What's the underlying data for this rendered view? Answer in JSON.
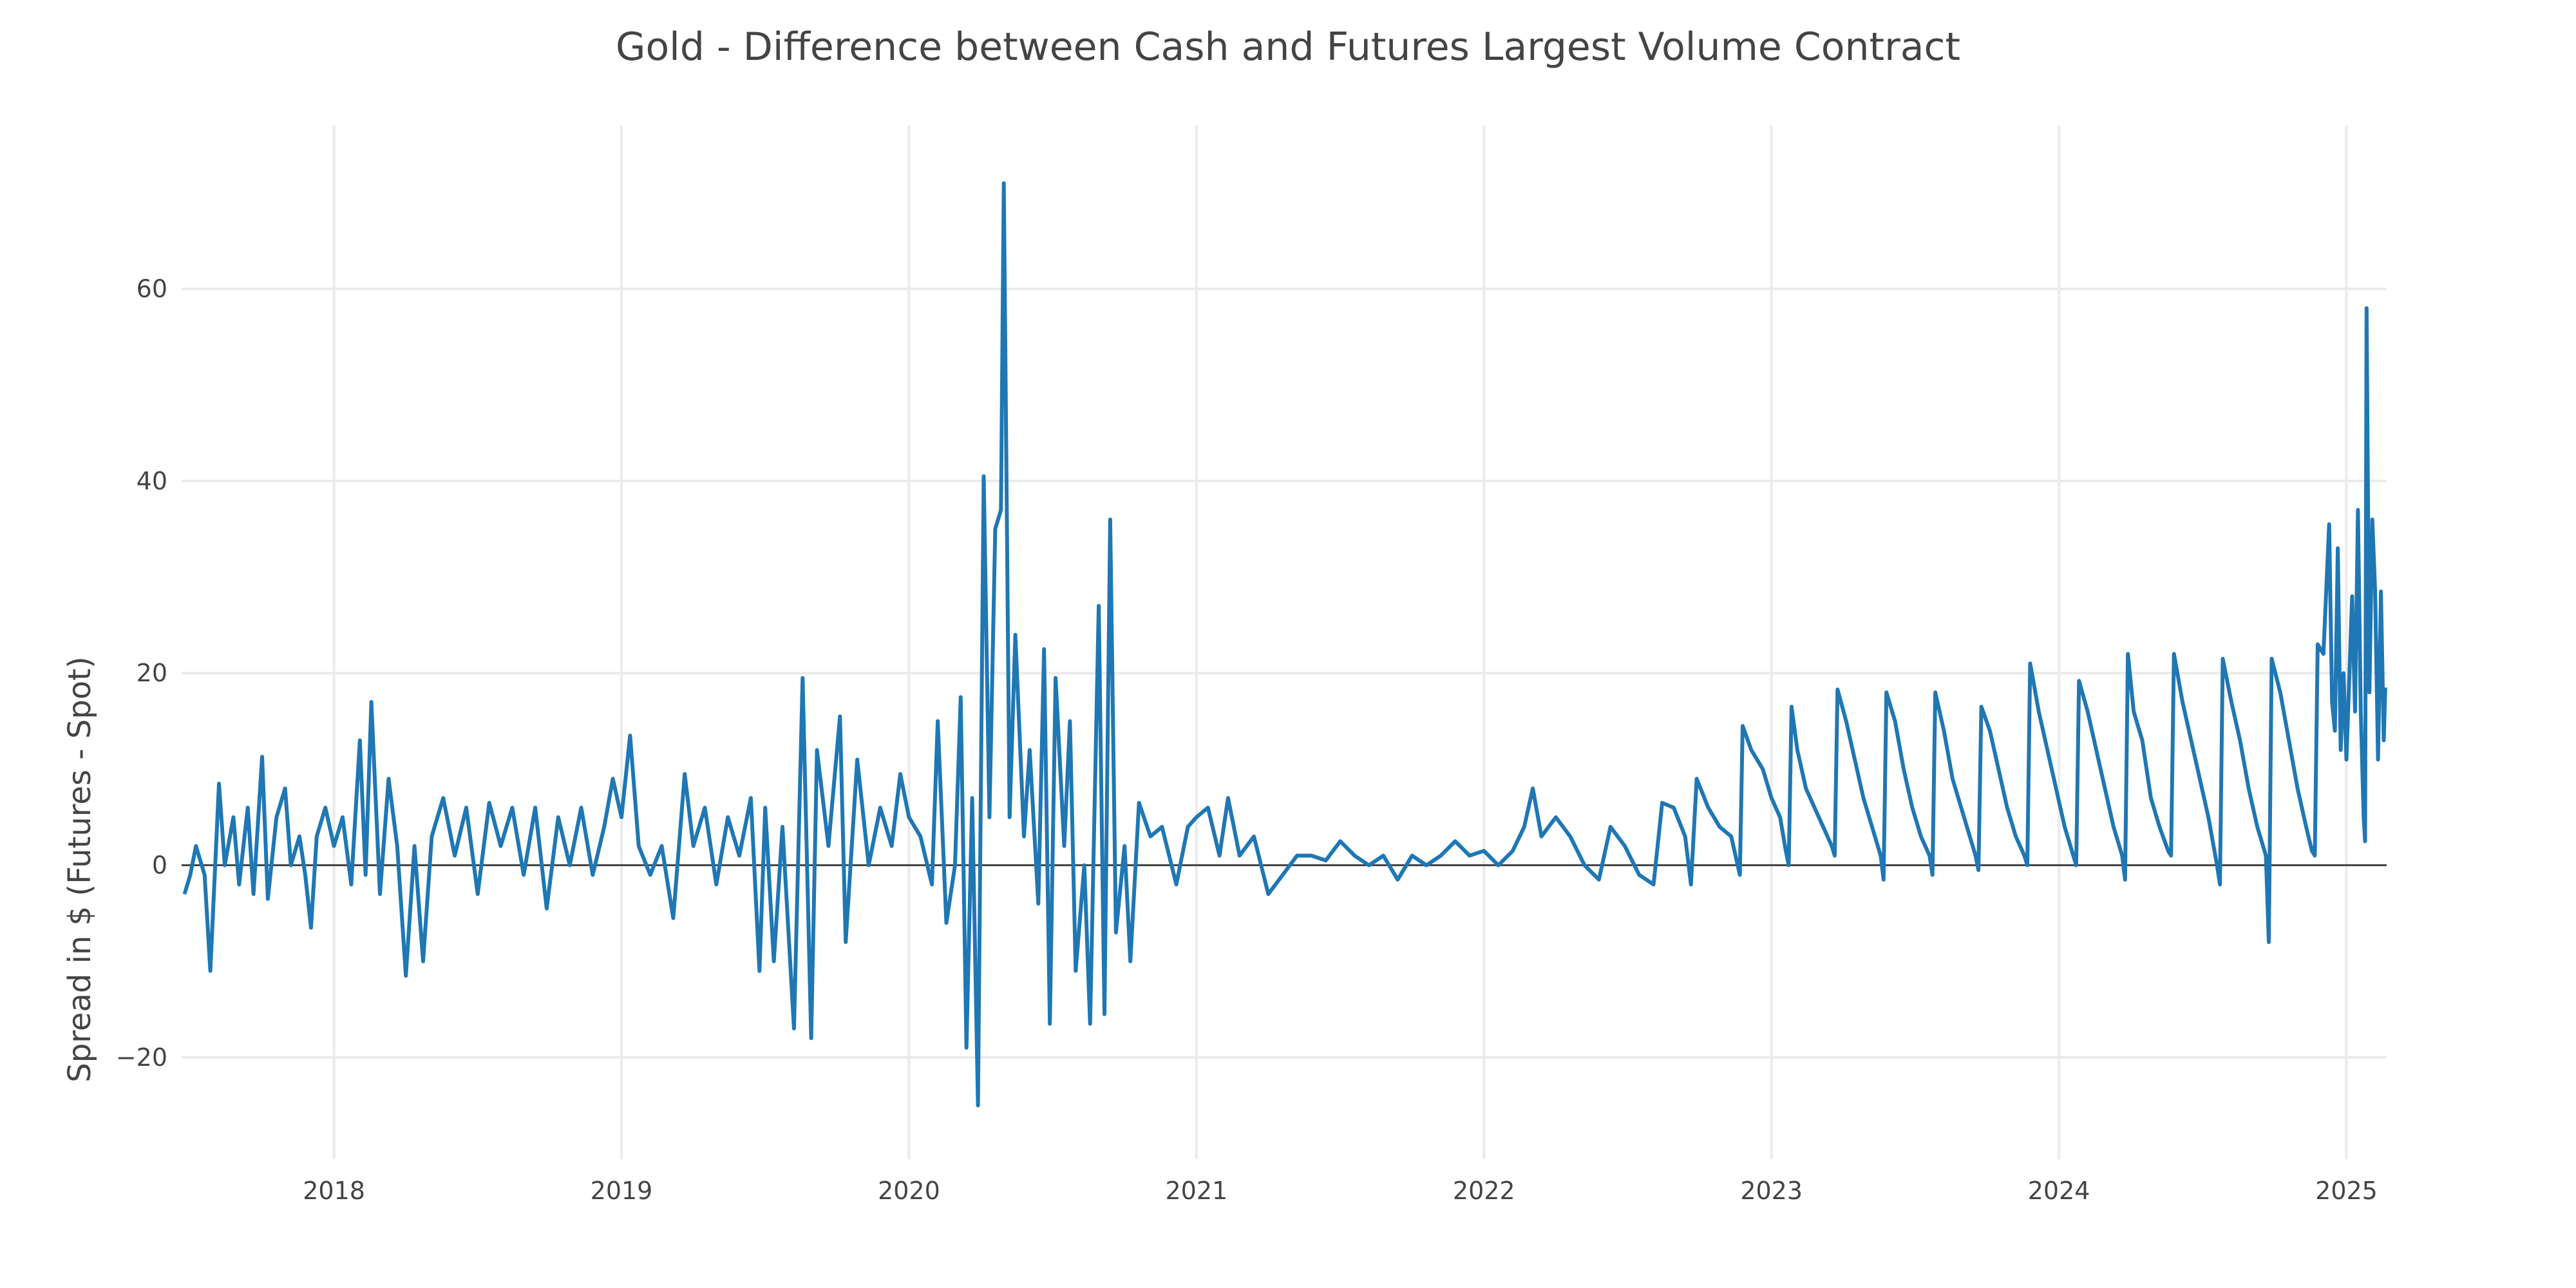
{
  "chart_data": {
    "type": "line",
    "title": "Gold - Difference between Cash and Futures Largest Volume Contract",
    "xlabel": "",
    "ylabel": "Spread in $ (Futures - Spot)",
    "xlim": [
      2017.47,
      2025.14
    ],
    "ylim": [
      -30.6,
      77.0
    ],
    "x_ticks": [
      2018,
      2019,
      2020,
      2021,
      2022,
      2023,
      2024,
      2025
    ],
    "x_tick_labels": [
      "2018",
      "2019",
      "2020",
      "2021",
      "2022",
      "2023",
      "2024",
      "2025"
    ],
    "y_ticks": [
      -20,
      0,
      20,
      40,
      60
    ],
    "y_tick_labels": [
      "−20",
      "0",
      "20",
      "40",
      "60"
    ],
    "grid": true,
    "zero_line": true,
    "series": [
      {
        "name": "Spread",
        "color": "#1f77b4",
        "points": [
          [
            2017.48,
            -3
          ],
          [
            2017.5,
            -1
          ],
          [
            2017.52,
            2
          ],
          [
            2017.55,
            -1
          ],
          [
            2017.57,
            -11
          ],
          [
            2017.6,
            8.5
          ],
          [
            2017.62,
            0
          ],
          [
            2017.65,
            5
          ],
          [
            2017.67,
            -2
          ],
          [
            2017.7,
            6
          ],
          [
            2017.72,
            -3
          ],
          [
            2017.75,
            11.3
          ],
          [
            2017.77,
            -3.5
          ],
          [
            2017.8,
            5
          ],
          [
            2017.83,
            8
          ],
          [
            2017.85,
            0
          ],
          [
            2017.88,
            3
          ],
          [
            2017.9,
            -1
          ],
          [
            2017.92,
            -6.5
          ],
          [
            2017.94,
            3
          ],
          [
            2017.97,
            6
          ],
          [
            2018.0,
            2
          ],
          [
            2018.03,
            5
          ],
          [
            2018.06,
            -2
          ],
          [
            2018.09,
            13
          ],
          [
            2018.11,
            -1
          ],
          [
            2018.13,
            17
          ],
          [
            2018.16,
            -3
          ],
          [
            2018.19,
            9
          ],
          [
            2018.22,
            2
          ],
          [
            2018.25,
            -11.5
          ],
          [
            2018.28,
            2
          ],
          [
            2018.31,
            -10
          ],
          [
            2018.34,
            3
          ],
          [
            2018.38,
            7
          ],
          [
            2018.42,
            1
          ],
          [
            2018.46,
            6
          ],
          [
            2018.5,
            -3
          ],
          [
            2018.54,
            6.5
          ],
          [
            2018.58,
            2
          ],
          [
            2018.62,
            6
          ],
          [
            2018.66,
            -1
          ],
          [
            2018.7,
            6
          ],
          [
            2018.74,
            -4.5
          ],
          [
            2018.78,
            5
          ],
          [
            2018.82,
            0
          ],
          [
            2018.86,
            6
          ],
          [
            2018.9,
            -1
          ],
          [
            2018.94,
            4
          ],
          [
            2018.97,
            9
          ],
          [
            2019.0,
            5
          ],
          [
            2019.03,
            13.5
          ],
          [
            2019.06,
            2
          ],
          [
            2019.1,
            -1
          ],
          [
            2019.14,
            2
          ],
          [
            2019.18,
            -5.5
          ],
          [
            2019.22,
            9.5
          ],
          [
            2019.25,
            2
          ],
          [
            2019.29,
            6
          ],
          [
            2019.33,
            -2
          ],
          [
            2019.37,
            5
          ],
          [
            2019.41,
            1
          ],
          [
            2019.45,
            7
          ],
          [
            2019.48,
            -11
          ],
          [
            2019.5,
            6
          ],
          [
            2019.53,
            -10
          ],
          [
            2019.56,
            4
          ],
          [
            2019.6,
            -17
          ],
          [
            2019.63,
            19.5
          ],
          [
            2019.66,
            -18
          ],
          [
            2019.68,
            12
          ],
          [
            2019.72,
            2
          ],
          [
            2019.76,
            15.5
          ],
          [
            2019.78,
            -8
          ],
          [
            2019.82,
            11
          ],
          [
            2019.86,
            0
          ],
          [
            2019.9,
            6
          ],
          [
            2019.94,
            2
          ],
          [
            2019.97,
            9.5
          ],
          [
            2020.0,
            5
          ],
          [
            2020.04,
            3
          ],
          [
            2020.08,
            -2
          ],
          [
            2020.1,
            15
          ],
          [
            2020.13,
            -6
          ],
          [
            2020.16,
            0
          ],
          [
            2020.18,
            17.5
          ],
          [
            2020.2,
            -19
          ],
          [
            2020.22,
            7
          ],
          [
            2020.24,
            -25
          ],
          [
            2020.26,
            40.5
          ],
          [
            2020.28,
            5
          ],
          [
            2020.3,
            35
          ],
          [
            2020.32,
            37
          ],
          [
            2020.33,
            71
          ],
          [
            2020.35,
            5
          ],
          [
            2020.37,
            24
          ],
          [
            2020.4,
            3
          ],
          [
            2020.42,
            12
          ],
          [
            2020.45,
            -4
          ],
          [
            2020.47,
            22.5
          ],
          [
            2020.49,
            -16.5
          ],
          [
            2020.51,
            19.5
          ],
          [
            2020.54,
            2
          ],
          [
            2020.56,
            15
          ],
          [
            2020.58,
            -11
          ],
          [
            2020.61,
            0
          ],
          [
            2020.63,
            -16.5
          ],
          [
            2020.66,
            27
          ],
          [
            2020.68,
            -15.5
          ],
          [
            2020.7,
            36
          ],
          [
            2020.72,
            -7
          ],
          [
            2020.75,
            2
          ],
          [
            2020.77,
            -10
          ],
          [
            2020.8,
            6.5
          ],
          [
            2020.84,
            3
          ],
          [
            2020.88,
            4
          ],
          [
            2020.93,
            -2
          ],
          [
            2020.97,
            4
          ],
          [
            2021.0,
            5
          ],
          [
            2021.04,
            6
          ],
          [
            2021.08,
            1
          ],
          [
            2021.11,
            7
          ],
          [
            2021.15,
            1
          ],
          [
            2021.2,
            3
          ],
          [
            2021.25,
            -3
          ],
          [
            2021.3,
            -1
          ],
          [
            2021.35,
            1
          ],
          [
            2021.4,
            1
          ],
          [
            2021.45,
            0.5
          ],
          [
            2021.5,
            2.5
          ],
          [
            2021.55,
            1
          ],
          [
            2021.6,
            0
          ],
          [
            2021.65,
            1
          ],
          [
            2021.7,
            -1.5
          ],
          [
            2021.75,
            1
          ],
          [
            2021.8,
            0
          ],
          [
            2021.85,
            1
          ],
          [
            2021.9,
            2.5
          ],
          [
            2021.95,
            1
          ],
          [
            2022.0,
            1.5
          ],
          [
            2022.05,
            0
          ],
          [
            2022.1,
            1.5
          ],
          [
            2022.14,
            4
          ],
          [
            2022.17,
            8
          ],
          [
            2022.2,
            3
          ],
          [
            2022.25,
            5
          ],
          [
            2022.3,
            3
          ],
          [
            2022.35,
            0
          ],
          [
            2022.4,
            -1.5
          ],
          [
            2022.44,
            4
          ],
          [
            2022.49,
            2
          ],
          [
            2022.54,
            -1
          ],
          [
            2022.59,
            -2
          ],
          [
            2022.62,
            6.5
          ],
          [
            2022.66,
            6
          ],
          [
            2022.7,
            3
          ],
          [
            2022.72,
            -2
          ],
          [
            2022.74,
            9
          ],
          [
            2022.78,
            6
          ],
          [
            2022.82,
            4
          ],
          [
            2022.86,
            3
          ],
          [
            2022.89,
            -1
          ],
          [
            2022.9,
            14.5
          ],
          [
            2022.93,
            12
          ],
          [
            2022.97,
            10
          ],
          [
            2023.0,
            7
          ],
          [
            2023.03,
            5
          ],
          [
            2023.05,
            1.5
          ],
          [
            2023.06,
            0
          ],
          [
            2023.07,
            16.5
          ],
          [
            2023.09,
            12
          ],
          [
            2023.12,
            8
          ],
          [
            2023.15,
            6
          ],
          [
            2023.18,
            4
          ],
          [
            2023.21,
            2
          ],
          [
            2023.22,
            1
          ],
          [
            2023.23,
            18.3
          ],
          [
            2023.26,
            15
          ],
          [
            2023.29,
            11
          ],
          [
            2023.32,
            7
          ],
          [
            2023.35,
            4
          ],
          [
            2023.38,
            1
          ],
          [
            2023.39,
            -1.5
          ],
          [
            2023.4,
            18
          ],
          [
            2023.43,
            15
          ],
          [
            2023.46,
            10
          ],
          [
            2023.49,
            6
          ],
          [
            2023.52,
            3
          ],
          [
            2023.55,
            1
          ],
          [
            2023.56,
            -1
          ],
          [
            2023.57,
            18
          ],
          [
            2023.6,
            14
          ],
          [
            2023.63,
            9
          ],
          [
            2023.66,
            6
          ],
          [
            2023.69,
            3
          ],
          [
            2023.71,
            1
          ],
          [
            2023.72,
            -0.5
          ],
          [
            2023.73,
            16.5
          ],
          [
            2023.76,
            14
          ],
          [
            2023.79,
            10
          ],
          [
            2023.82,
            6
          ],
          [
            2023.85,
            3
          ],
          [
            2023.88,
            1
          ],
          [
            2023.89,
            0
          ],
          [
            2023.9,
            21
          ],
          [
            2023.93,
            16
          ],
          [
            2023.96,
            12
          ],
          [
            2023.99,
            8
          ],
          [
            2024.02,
            4
          ],
          [
            2024.05,
            1
          ],
          [
            2024.06,
            0
          ],
          [
            2024.07,
            19.2
          ],
          [
            2024.1,
            16
          ],
          [
            2024.13,
            12
          ],
          [
            2024.16,
            8
          ],
          [
            2024.19,
            4
          ],
          [
            2024.22,
            1
          ],
          [
            2024.23,
            -1.5
          ],
          [
            2024.24,
            22
          ],
          [
            2024.26,
            16
          ],
          [
            2024.29,
            13
          ],
          [
            2024.32,
            7
          ],
          [
            2024.35,
            4
          ],
          [
            2024.38,
            1.5
          ],
          [
            2024.39,
            1
          ],
          [
            2024.4,
            22
          ],
          [
            2024.43,
            17
          ],
          [
            2024.46,
            13
          ],
          [
            2024.49,
            9
          ],
          [
            2024.52,
            5
          ],
          [
            2024.55,
            0
          ],
          [
            2024.56,
            -2
          ],
          [
            2024.57,
            21.5
          ],
          [
            2024.6,
            17
          ],
          [
            2024.63,
            13
          ],
          [
            2024.66,
            8
          ],
          [
            2024.69,
            4
          ],
          [
            2024.72,
            1
          ],
          [
            2024.73,
            -8
          ],
          [
            2024.74,
            21.5
          ],
          [
            2024.77,
            18
          ],
          [
            2024.8,
            13
          ],
          [
            2024.83,
            8
          ],
          [
            2024.86,
            4
          ],
          [
            2024.88,
            1.5
          ],
          [
            2024.89,
            1
          ],
          [
            2024.9,
            23
          ],
          [
            2024.92,
            22
          ],
          [
            2024.94,
            35.5
          ],
          [
            2024.95,
            17
          ],
          [
            2024.96,
            14
          ],
          [
            2024.97,
            33
          ],
          [
            2024.98,
            12
          ],
          [
            2024.99,
            20
          ],
          [
            2025.0,
            11
          ],
          [
            2025.02,
            28
          ],
          [
            2025.03,
            16
          ],
          [
            2025.04,
            37
          ],
          [
            2025.05,
            16
          ],
          [
            2025.06,
            5
          ],
          [
            2025.065,
            2.5
          ],
          [
            2025.07,
            58
          ],
          [
            2025.08,
            18
          ],
          [
            2025.09,
            36
          ],
          [
            2025.1,
            28.5
          ],
          [
            2025.11,
            11
          ],
          [
            2025.12,
            28.5
          ],
          [
            2025.13,
            13
          ],
          [
            2025.135,
            18.5
          ]
        ]
      }
    ]
  }
}
